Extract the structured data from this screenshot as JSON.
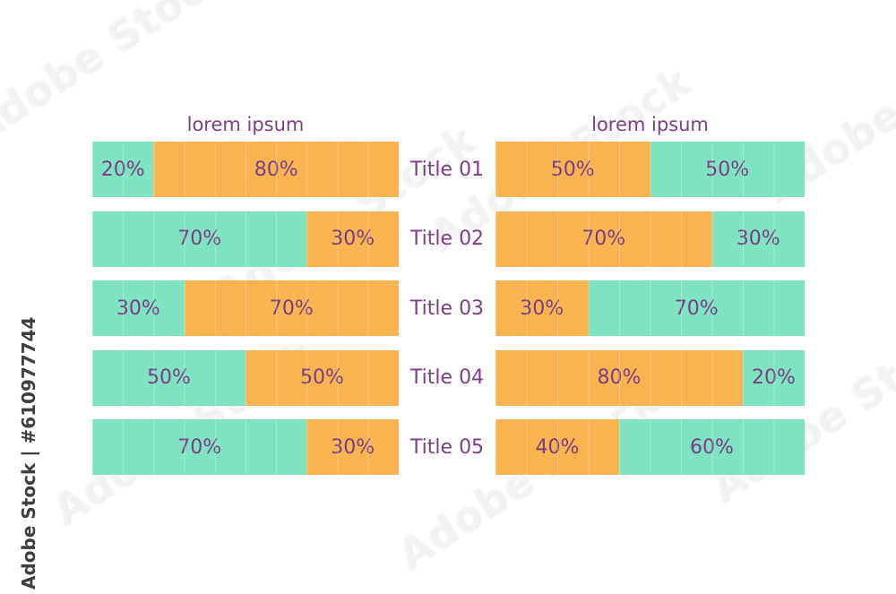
{
  "page": {
    "background": "#ffffff"
  },
  "watermark": {
    "diagonal_text": "Adobe Stock",
    "side_text": "Adobe Stock | #610977744"
  },
  "colors": {
    "mint": "#7DE3C1",
    "orange": "#F9B350",
    "label_purple": "#7B4083",
    "watermark_gray": "#3F3F3F"
  },
  "row_titles": [
    "Title 01",
    "Title 02",
    "Title 03",
    "Title 04",
    "Title 05"
  ],
  "chart_data": [
    {
      "type": "bar",
      "orientation": "horizontal",
      "stacked": true,
      "title": "lorem ipsum",
      "unit": "%",
      "xlim": [
        0,
        100
      ],
      "grid": false,
      "legend": "none",
      "categories": [
        "Title 01",
        "Title 02",
        "Title 03",
        "Title 04",
        "Title 05"
      ],
      "series": [
        {
          "name": "mint",
          "color": "#7DE3C1",
          "values": [
            20,
            70,
            30,
            50,
            70
          ]
        },
        {
          "name": "orange",
          "color": "#F9B350",
          "values": [
            80,
            30,
            70,
            50,
            30
          ]
        }
      ]
    },
    {
      "type": "bar",
      "orientation": "horizontal",
      "stacked": true,
      "title": "lorem ipsum",
      "unit": "%",
      "xlim": [
        0,
        100
      ],
      "grid": false,
      "legend": "none",
      "categories": [
        "Title 01",
        "Title 02",
        "Title 03",
        "Title 04",
        "Title 05"
      ],
      "series": [
        {
          "name": "orange",
          "color": "#F9B350",
          "values": [
            50,
            70,
            30,
            80,
            40
          ]
        },
        {
          "name": "mint",
          "color": "#7DE3C1",
          "values": [
            50,
            30,
            70,
            20,
            60
          ]
        }
      ]
    }
  ]
}
